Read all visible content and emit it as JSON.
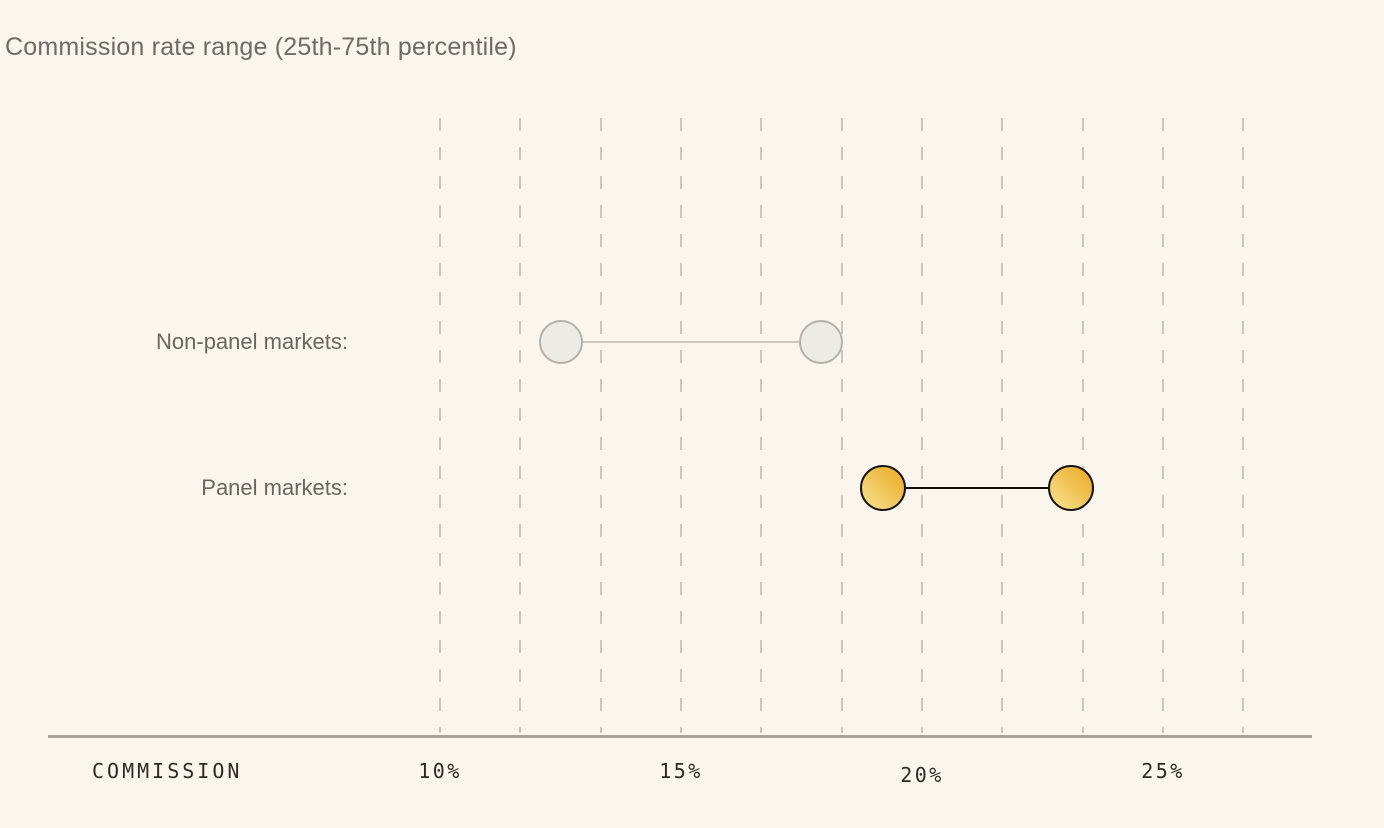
{
  "title": "Commission rate range (25th-75th percentile)",
  "axis": {
    "caption": "COMMISSION",
    "tick_labels": [
      "10%",
      "15%",
      "20%",
      "25%"
    ]
  },
  "colors": {
    "background": "#FBF6ED",
    "title_text": "#6E6B65",
    "row_label_text": "#6A665F",
    "gridline": "#C9C6BF",
    "axis_line": "#A8A59E",
    "axis_text": "#2E2A24",
    "nonpanel_fill": "#EDECE4",
    "nonpanel_stroke": "#B4B1A9",
    "nonpanel_line": "#C9C7C0",
    "panel_fill_light": "#F7DE8A",
    "panel_fill_dark": "#EBAD2A",
    "panel_stroke": "#17130D",
    "panel_line": "#12100B"
  },
  "chart_data": {
    "type": "dumbbell",
    "orientation": "horizontal",
    "title": "Commission rate range (25th-75th percentile)",
    "xlabel": "COMMISSION",
    "x_ticks": [
      10,
      15,
      20,
      25
    ],
    "x_tick_labels": [
      "10%",
      "15%",
      "20%",
      "25%"
    ],
    "xlim": [
      10,
      26.7
    ],
    "gridline_step": 1.667,
    "grid": "dashed-vertical",
    "legend": "none",
    "series": [
      {
        "label": "Non-panel markets:",
        "p25": 12.5,
        "p75": 17.9,
        "style": "muted"
      },
      {
        "label": "Panel markets:",
        "p25": 19.2,
        "p75": 23.1,
        "style": "highlight"
      }
    ]
  }
}
